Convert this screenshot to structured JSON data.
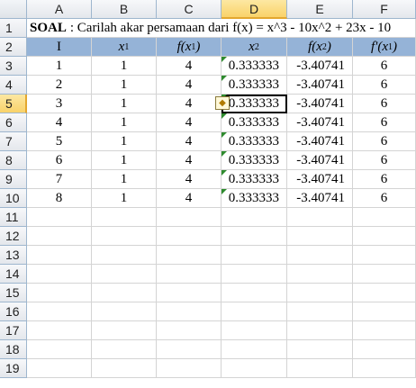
{
  "columns": [
    "A",
    "B",
    "C",
    "D",
    "E",
    "F"
  ],
  "rows": [
    "1",
    "2",
    "3",
    "4",
    "5",
    "6",
    "7",
    "8",
    "9",
    "10",
    "11",
    "12",
    "13",
    "14",
    "15",
    "16",
    "17",
    "18",
    "19"
  ],
  "title": {
    "prefix": "SOAL",
    "text": " : Carilah akar persamaan dari f(x) = x^3 - 10x^2 + 23x - 10"
  },
  "headers": {
    "I": "I",
    "x1_base": "x",
    "x1_sub": "1",
    "fx1_pre": "f(x",
    "fx1_sub": "1",
    "fx1_post": ")",
    "x2_base": "x",
    "x2_sub": "2",
    "fx2_pre": "f(x",
    "fx2_sub": "2",
    "fx2_post": ")",
    "dfx1_pre": "f'(x",
    "dfx1_sub": "1",
    "dfx1_post": ")"
  },
  "table": [
    {
      "i": "1",
      "x1": "1",
      "fx1": "4",
      "x2": "0.333333",
      "fx2": "-3.40741",
      "dfx1": "6"
    },
    {
      "i": "2",
      "x1": "1",
      "fx1": "4",
      "x2": "0.333333",
      "fx2": "-3.40741",
      "dfx1": "6"
    },
    {
      "i": "3",
      "x1": "1",
      "fx1": "4",
      "x2": "0.333333",
      "fx2": "-3.40741",
      "dfx1": "6"
    },
    {
      "i": "4",
      "x1": "1",
      "fx1": "4",
      "x2": "0.333333",
      "fx2": "-3.40741",
      "dfx1": "6"
    },
    {
      "i": "5",
      "x1": "1",
      "fx1": "4",
      "x2": "0.333333",
      "fx2": "-3.40741",
      "dfx1": "6"
    },
    {
      "i": "6",
      "x1": "1",
      "fx1": "4",
      "x2": "0.333333",
      "fx2": "-3.40741",
      "dfx1": "6"
    },
    {
      "i": "7",
      "x1": "1",
      "fx1": "4",
      "x2": "0.333333",
      "fx2": "-3.40741",
      "dfx1": "6"
    },
    {
      "i": "8",
      "x1": "1",
      "fx1": "4",
      "x2": "0.333333",
      "fx2": "-3.40741",
      "dfx1": "6"
    }
  ],
  "active_cell": "D5",
  "colors": {
    "header_fill": "#95b3d7",
    "active_header": "#f9d26a",
    "error_triangle": "#2e8b2e"
  },
  "icons": {
    "warning": "warning-diamond-icon"
  }
}
